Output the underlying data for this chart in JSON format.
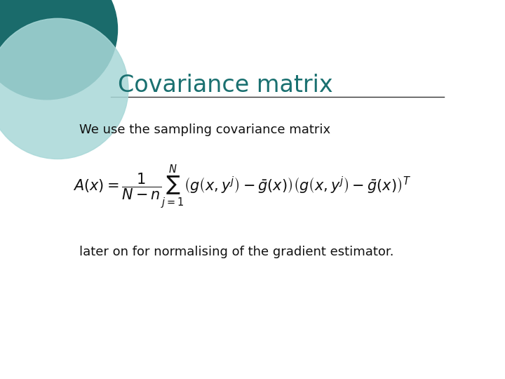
{
  "title": "Covariance matrix",
  "title_color": "#1a7070",
  "background_color": "#ffffff",
  "circle_dark_color": "#1a6b6b",
  "circle_light_color": "#a8d8d8",
  "text1": "We use the sampling covariance matrix",
  "text2": "later on for normalising of the gradient estimator.",
  "line_color": "#333333",
  "text_color": "#111111",
  "font_size_title": 24,
  "font_size_text": 13,
  "font_size_formula": 15
}
